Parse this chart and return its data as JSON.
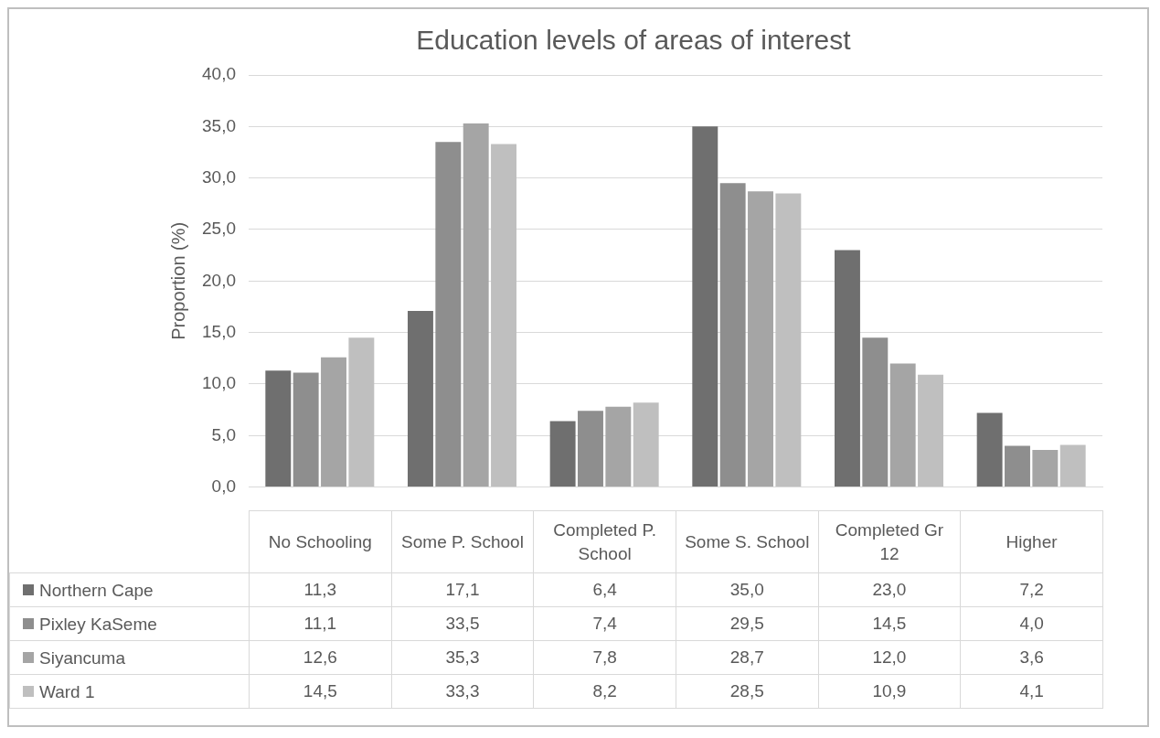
{
  "chart_data": {
    "type": "bar",
    "title": "Education levels of areas of interest",
    "ylabel": "Proportion (%)",
    "categories": [
      "No Schooling",
      "Some P. School",
      "Completed P. School",
      "Some S. School",
      "Completed Gr 12",
      "Higher"
    ],
    "series": [
      {
        "name": "Northern Cape",
        "color": "#6f6f6f",
        "values": [
          11.3,
          17.1,
          6.4,
          35.0,
          23.0,
          7.2
        ],
        "value_labels": [
          "11,3",
          "17,1",
          "6,4",
          "35,0",
          "23,0",
          "7,2"
        ]
      },
      {
        "name": "Pixley KaSeme",
        "color": "#8e8e8e",
        "values": [
          11.1,
          33.5,
          7.4,
          29.5,
          14.5,
          4.0
        ],
        "value_labels": [
          "11,1",
          "33,5",
          "7,4",
          "29,5",
          "14,5",
          "4,0"
        ]
      },
      {
        "name": "Siyancuma",
        "color": "#a5a5a5",
        "values": [
          12.6,
          35.3,
          7.8,
          28.7,
          12.0,
          3.6
        ],
        "value_labels": [
          "12,6",
          "35,3",
          "7,8",
          "28,7",
          "12,0",
          "3,6"
        ]
      },
      {
        "name": "Ward 1",
        "color": "#bfbfbf",
        "values": [
          14.5,
          33.3,
          8.2,
          28.5,
          10.9,
          4.1
        ],
        "value_labels": [
          "14,5",
          "33,3",
          "8,2",
          "28,5",
          "10,9",
          "4,1"
        ]
      }
    ],
    "ylim": [
      0,
      40
    ],
    "yticks": [
      {
        "value": 0,
        "label": "0,0"
      },
      {
        "value": 5,
        "label": "5,0"
      },
      {
        "value": 10,
        "label": "10,0"
      },
      {
        "value": 15,
        "label": "15,0"
      },
      {
        "value": 20,
        "label": "20,0"
      },
      {
        "value": 25,
        "label": "25,0"
      },
      {
        "value": 30,
        "label": "30,0"
      },
      {
        "value": 35,
        "label": "35,0"
      },
      {
        "value": 40,
        "label": "40,0"
      }
    ],
    "grid": "y",
    "legend": "bottom left"
  }
}
